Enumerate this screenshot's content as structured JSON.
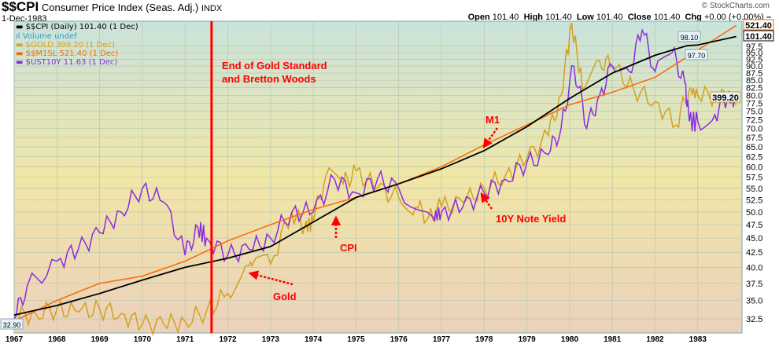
{
  "header": {
    "symbol": "$$CPI",
    "name": "Consumer Price Index (Seas. Adj.)",
    "exchange": "INDX",
    "date": "1-Dec-1983",
    "brand": "© StockCharts.com",
    "open_label": "Open",
    "open": "101.40",
    "high_label": "High",
    "high": "101.40",
    "low_label": "Low",
    "low": "101.40",
    "close_label": "Close",
    "close": "101.40",
    "chg_label": "Chg",
    "chg": "+0.00 (+0.00%)"
  },
  "legend": [
    {
      "text": "$$CPI (Daily) 101.40 (1 Dec)",
      "color": "#000000"
    },
    {
      "text": "Volume undef",
      "color": "#3399cc"
    },
    {
      "text": "$GOLD 399.20 (1 Dec)",
      "color": "#d4a020"
    },
    {
      "text": "$$M1SL 521.40 (1 Dec)",
      "color": "#ff6600"
    },
    {
      "text": "$UST10Y 11.63 (1 Dec)",
      "color": "#8a2be2"
    }
  ],
  "chart_data": {
    "type": "line",
    "y_scale": "log",
    "ylim": [
      31.5,
      106
    ],
    "xlim": [
      1967,
      1984
    ],
    "grid": true,
    "legend_position": "top-left",
    "y_ticks": [
      "32.5",
      "35.0",
      "37.5",
      "40.0",
      "42.5",
      "45.0",
      "47.5",
      "50.0",
      "52.5",
      "55.0",
      "57.5",
      "60.0",
      "62.5",
      "65.0",
      "67.5",
      "70.0",
      "72.5",
      "75.0",
      "77.5",
      "80.0",
      "82.5",
      "85.0",
      "87.5",
      "90.0",
      "92.5",
      "95.0",
      "97.5"
    ],
    "x_ticks": [
      "1967",
      "1968",
      "1969",
      "1970",
      "1971",
      "1972",
      "1973",
      "1974",
      "1975",
      "1976",
      "1977",
      "1978",
      "1979",
      "1980",
      "1981",
      "1982",
      "1983"
    ],
    "series": [
      {
        "name": "$GOLD",
        "color": "#d4a020",
        "x": [
          1967,
          1967.5,
          1968,
          1968.5,
          1969,
          1969.5,
          1970,
          1970.5,
          1971,
          1971.5,
          1972,
          1972.4,
          1972.6,
          1973,
          1973.5,
          1973.8,
          1974,
          1974.3,
          1974.7,
          1975,
          1975.5,
          1976,
          1976.4,
          1976.7,
          1977,
          1977.5,
          1978,
          1978.5,
          1979,
          1979.5,
          1979.8,
          1980.05,
          1980.3,
          1980.7,
          1981,
          1981.5,
          1982,
          1982.5,
          1982.8,
          1983,
          1983.5,
          1983.9
        ],
        "y": [
          32.8,
          33.2,
          33.8,
          33.4,
          33.8,
          33.2,
          31.8,
          31.8,
          32.2,
          33.5,
          36,
          40,
          40.8,
          40.5,
          50,
          47,
          48,
          58,
          56,
          59,
          55,
          53,
          51,
          49,
          51,
          52,
          55,
          58,
          62,
          68,
          80,
          107,
          82,
          92,
          90,
          82,
          78,
          71,
          82,
          80,
          80,
          77
        ]
      },
      {
        "name": "$UST10Y",
        "color": "#8a2be2",
        "x": [
          1967,
          1967.3,
          1968,
          1968.5,
          1969,
          1969.5,
          1970,
          1970.5,
          1971,
          1971.3,
          1971.5,
          1972,
          1972.5,
          1973,
          1973.5,
          1974,
          1974.5,
          1975,
          1975.5,
          1976,
          1976.8,
          1977,
          1977.5,
          1978,
          1978.5,
          1979,
          1979.5,
          1979.8,
          1980.1,
          1980.4,
          1980.7,
          1981,
          1981.4,
          1981.7,
          1982,
          1982.4,
          1982.7,
          1982.8,
          1983,
          1983.4,
          1983.7,
          1983.9
        ],
        "y": [
          32.5,
          37,
          41,
          43,
          46,
          50,
          55,
          52,
          42,
          47,
          45,
          42,
          43,
          45,
          50,
          50,
          57,
          54,
          57,
          55,
          49,
          50,
          51,
          54,
          57,
          61,
          63,
          70,
          90,
          70,
          80,
          90,
          88,
          104,
          88,
          95,
          84,
          72,
          72,
          74,
          80,
          78
        ]
      },
      {
        "name": "$$M1SL",
        "color": "#ff6600",
        "x": [
          1967,
          1968,
          1969,
          1970,
          1971,
          1972,
          1973,
          1974,
          1975,
          1976,
          1977,
          1978,
          1979,
          1980,
          1981,
          1982,
          1983,
          1983.9
        ],
        "y": [
          32.2,
          35,
          37.5,
          38.6,
          41,
          44.5,
          47.5,
          50.5,
          53,
          56,
          60,
          65.5,
          71,
          77,
          81,
          86,
          96,
          106
        ]
      },
      {
        "name": "$$CPI",
        "color": "#000000",
        "x": [
          1967,
          1968,
          1969,
          1970,
          1971,
          1972,
          1973,
          1974,
          1975,
          1976,
          1977,
          1978,
          1979,
          1980,
          1981,
          1982,
          1982.75,
          1983,
          1983.9
        ],
        "y": [
          33.0,
          34.3,
          36.0,
          38.0,
          40.0,
          41.5,
          43.5,
          48,
          53,
          56,
          59.5,
          64,
          70.5,
          79,
          87.5,
          94,
          97.7,
          98.0,
          101.4
        ]
      }
    ],
    "price_labels": [
      {
        "text": "521.40",
        "color": "#ff6600"
      },
      {
        "text": "101.40",
        "color": "#000000"
      },
      {
        "text": "399.20",
        "color": "#d4a020"
      },
      {
        "text": "32.90",
        "color": "#000000"
      },
      {
        "text": "98.10",
        "color": "#000000"
      },
      {
        "text": "97.70",
        "color": "#000000"
      }
    ],
    "event_line": {
      "x": 1971.62,
      "color": "#ff0000"
    },
    "annotations": [
      {
        "text": "End of Gold Standard",
        "color": "#ff0000"
      },
      {
        "text": "and Bretton Woods",
        "color": "#ff0000"
      },
      {
        "text": "M1",
        "color": "#ff0000"
      },
      {
        "text": "CPI",
        "color": "#ff0000"
      },
      {
        "text": "Gold",
        "color": "#ff0000"
      },
      {
        "text": "10Y Note Yield",
        "color": "#ff0000"
      }
    ]
  }
}
